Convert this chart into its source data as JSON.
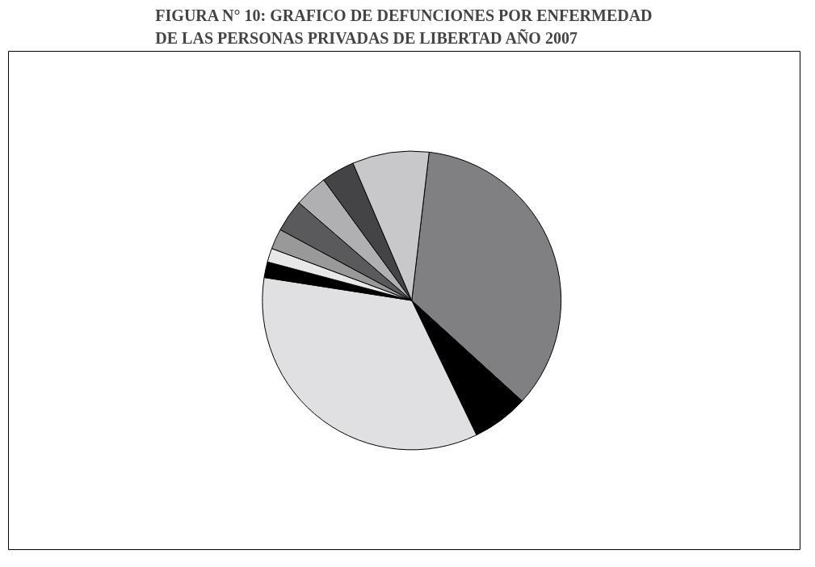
{
  "chart_data": {
    "type": "pie",
    "title": "FIGURA N° 10: GRAFICO DE DEFUNCIONES POR ENFERMEDAD\nDE LAS PERSONAS PRIVADAS DE LIBERTAD AÑO 2007",
    "categories": [
      null,
      null,
      null,
      null,
      null,
      null,
      null,
      null,
      null,
      null
    ],
    "values": [
      34.9,
      6.1,
      34.6,
      1.7,
      1.5,
      2.2,
      3.5,
      3.6,
      3.6,
      8.3
    ],
    "colors": [
      "#808083",
      "#000000",
      "#e0e0e2",
      "#000000",
      "#e8e8e8",
      "#999999",
      "#5a5a5c",
      "#b0b0b2",
      "#444446",
      "#c8c8ca"
    ]
  }
}
